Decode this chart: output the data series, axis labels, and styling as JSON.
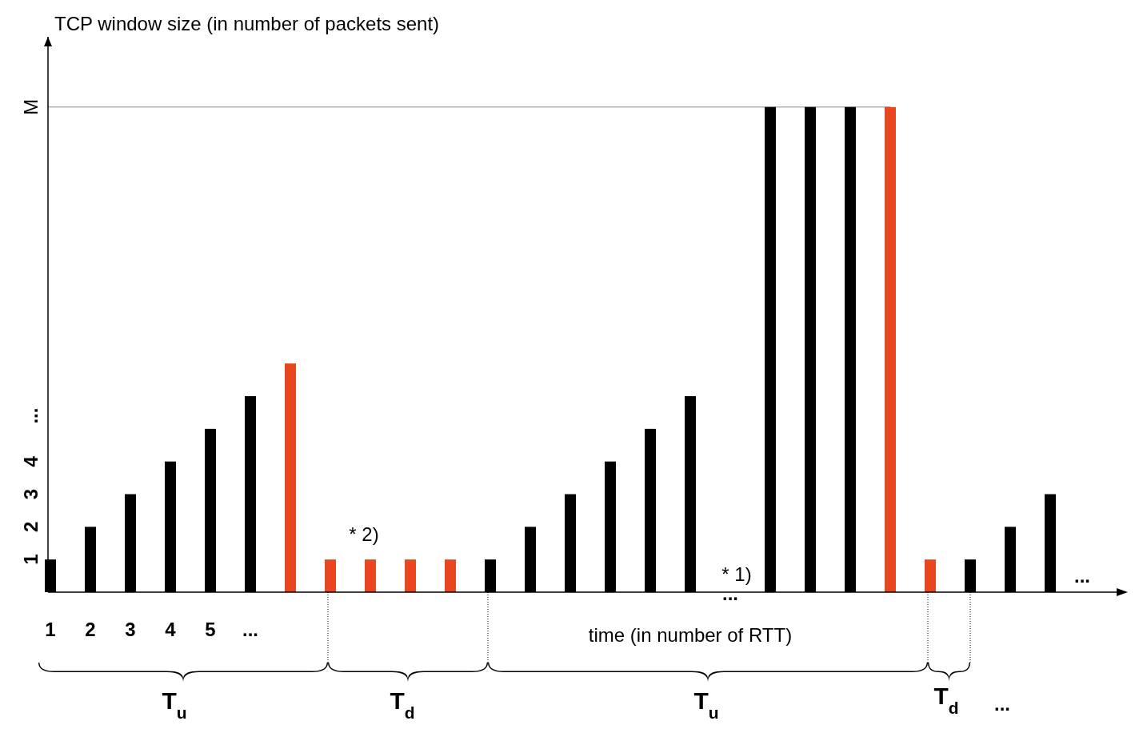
{
  "chart_data": {
    "type": "bar",
    "ylabel": "TCP window size (in number of packets sent)",
    "xlabel": "time (in number of RTT)",
    "categories": [
      "1",
      "2",
      "3",
      "4",
      "5",
      "...",
      null,
      null,
      null,
      null,
      null,
      null,
      null,
      null,
      null,
      null,
      null,
      null,
      null,
      null,
      null,
      null,
      null,
      null,
      null,
      null,
      null
    ],
    "values": [
      1,
      2,
      3,
      4,
      5,
      6,
      7,
      1,
      1,
      1,
      1,
      1,
      2,
      3,
      4,
      5,
      6,
      null,
      14.85,
      14.85,
      14.85,
      14.85,
      1,
      1,
      2,
      3,
      null
    ],
    "colors": [
      "#000000",
      "#000000",
      "#000000",
      "#000000",
      "#000000",
      "#000000",
      "#e8461e",
      "#e8461e",
      "#e8461e",
      "#e8461e",
      "#e8461e",
      "#000000",
      "#000000",
      "#000000",
      "#000000",
      "#000000",
      "#000000",
      null,
      "#000000",
      "#000000",
      "#000000",
      "#e8461e",
      "#e8461e",
      "#000000",
      "#000000",
      "#000000",
      null
    ],
    "ylim": [
      0,
      17
    ],
    "yticks": [
      1,
      2,
      3,
      4,
      {
        "value": 5.4,
        "label": "..."
      },
      {
        "value": 14.85,
        "label": "M"
      }
    ],
    "ref_lines": [
      {
        "axis": "y",
        "value": 14.85,
        "label": null,
        "color": "#888888"
      }
    ],
    "annotations": [
      "* 2)",
      "* 1)",
      "...",
      "...",
      "T$_{u}$",
      "T$_{d}$",
      "T$_{u}$",
      "T$_{d}$",
      "..."
    ]
  }
}
